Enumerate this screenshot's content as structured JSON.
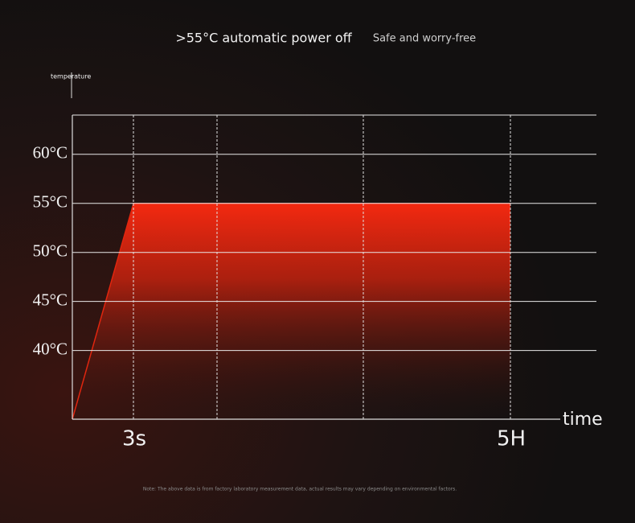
{
  "chart_data": {
    "type": "area",
    "title": ">55°C automatic power off",
    "subtitle": "Safe and worry-free",
    "y_label": "temperature",
    "x_label": "time",
    "note": "Note: The above data is from factory laboratory measurement data, actual results may vary depending on environmental factors.",
    "categories": [
      null,
      "3s",
      null,
      null,
      "5H"
    ],
    "values": [
      33,
      55,
      55,
      55,
      55
    ],
    "color": "#e0260f",
    "ylim": [
      33,
      64
    ],
    "yticks": [
      {
        "value": 40,
        "label": "40°C"
      },
      {
        "value": 45,
        "label": "45°C"
      },
      {
        "value": 50,
        "label": "50°C"
      },
      {
        "value": 55,
        "label": "55°C"
      },
      {
        "value": 60,
        "label": "60°C"
      }
    ],
    "grid": true
  }
}
